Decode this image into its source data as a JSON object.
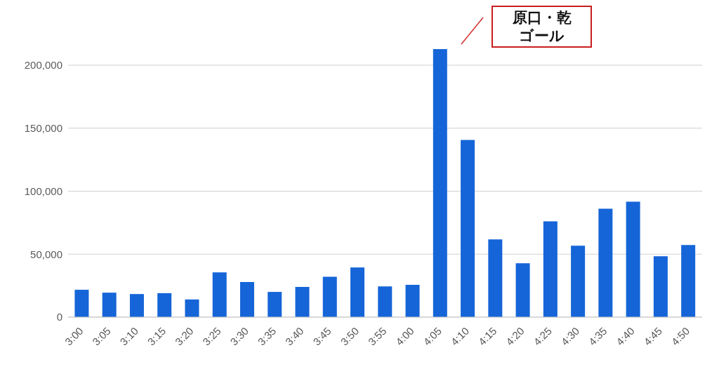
{
  "chart_data": {
    "type": "bar",
    "categories": [
      "3:00",
      "3:05",
      "3:10",
      "3:15",
      "3:20",
      "3:25",
      "3:30",
      "3:35",
      "3:40",
      "3:45",
      "3:50",
      "3:55",
      "4:00",
      "4:05",
      "4:10",
      "4:15",
      "4:20",
      "4:25",
      "4:30",
      "4:35",
      "4:40",
      "4:45",
      "4:50"
    ],
    "values": [
      21700,
      19400,
      18300,
      19000,
      14000,
      35500,
      27800,
      20000,
      24000,
      32000,
      39400,
      24400,
      25600,
      212800,
      140600,
      61700,
      42800,
      76000,
      56700,
      86000,
      91700,
      48300,
      57200
    ],
    "color": "#1565d8",
    "ylim": [
      0,
      212800
    ],
    "yticks": [
      0,
      {
        "value": 50000,
        "label": "50,000"
      },
      {
        "value": 100000,
        "label": "100,000"
      },
      {
        "value": 150000,
        "label": "150,000"
      },
      {
        "value": 200000,
        "label": "200,000"
      }
    ],
    "grid": "y",
    "legend": false,
    "annotations": [
      "原口・乾ゴール"
    ]
  }
}
